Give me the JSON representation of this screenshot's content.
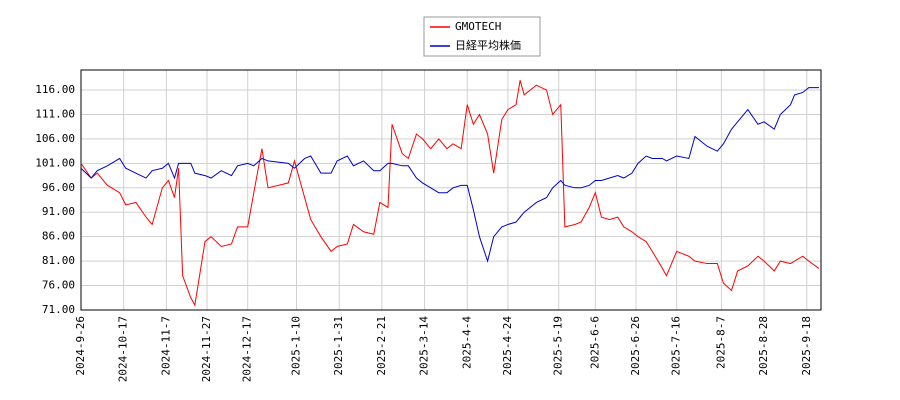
{
  "chart_data": {
    "type": "line",
    "x": [
      "2024-9-26",
      "2024-10-1",
      "2024-10-4",
      "2024-10-9",
      "2024-10-15",
      "2024-10-18",
      "2024-10-23",
      "2024-10-28",
      "2024-10-31",
      "2024-11-5",
      "2024-11-8",
      "2024-11-11",
      "2024-11-13",
      "2024-11-15",
      "2024-11-19",
      "2024-11-21",
      "2024-11-26",
      "2024-11-29",
      "2024-12-4",
      "2024-12-9",
      "2024-12-12",
      "2024-12-17",
      "2024-12-20",
      "2024-12-24",
      "2024-12-27",
      "2025-1-6",
      "2025-1-9",
      "2025-1-14",
      "2025-1-17",
      "2025-1-22",
      "2025-1-27",
      "2025-1-30",
      "2025-2-4",
      "2025-2-7",
      "2025-2-12",
      "2025-2-17",
      "2025-2-20",
      "2025-2-24",
      "2025-2-26",
      "2025-3-3",
      "2025-3-6",
      "2025-3-10",
      "2025-3-13",
      "2025-3-17",
      "2025-3-21",
      "2025-3-25",
      "2025-3-28",
      "2025-4-1",
      "2025-4-4",
      "2025-4-7",
      "2025-4-10",
      "2025-4-14",
      "2025-4-17",
      "2025-4-21",
      "2025-4-24",
      "2025-4-28",
      "2025-4-30",
      "2025-5-2",
      "2025-5-8",
      "2025-5-13",
      "2025-5-16",
      "2025-5-20",
      "2025-5-22",
      "2025-5-27",
      "2025-5-30",
      "2025-6-3",
      "2025-6-6",
      "2025-6-9",
      "2025-6-13",
      "2025-6-17",
      "2025-6-20",
      "2025-6-24",
      "2025-6-27",
      "2025-7-1",
      "2025-7-4",
      "2025-7-9",
      "2025-7-11",
      "2025-7-16",
      "2025-7-22",
      "2025-7-25",
      "2025-7-31",
      "2025-8-5",
      "2025-8-8",
      "2025-8-12",
      "2025-8-15",
      "2025-8-20",
      "2025-8-25",
      "2025-8-28",
      "2025-9-2",
      "2025-9-5",
      "2025-9-10",
      "2025-9-12",
      "2025-9-16",
      "2025-9-19",
      "2025-9-24"
    ],
    "series": [
      {
        "name": "GMOTECH",
        "color": "#ff0000",
        "values": [
          101,
          98,
          99,
          96.5,
          95,
          92.5,
          93,
          90,
          88.5,
          96,
          97.5,
          94,
          100,
          78,
          73.5,
          72,
          85,
          86,
          84,
          84.5,
          88,
          88,
          95,
          104,
          96,
          97,
          101.5,
          94,
          89.5,
          86,
          83,
          84,
          84.5,
          88.5,
          87,
          86.5,
          93,
          92,
          109,
          103,
          102,
          107,
          106,
          104,
          106,
          104,
          105,
          104,
          113,
          109,
          111,
          107,
          99,
          110,
          112,
          113,
          118,
          115,
          117,
          116,
          111,
          113,
          88,
          88.5,
          89,
          92,
          95,
          90,
          89.5,
          90,
          88,
          87,
          86,
          85,
          83,
          79.5,
          78,
          83,
          82,
          81,
          80.5,
          80.5,
          76.5,
          75,
          79,
          80,
          82,
          81,
          79,
          81,
          80.5,
          81,
          82,
          81,
          79.5
        ]
      },
      {
        "name": "日経平均株価",
        "color": "#0000cc",
        "values": [
          100,
          98,
          99.5,
          100.5,
          102,
          100,
          99,
          98,
          99.5,
          100,
          101,
          98,
          101,
          101,
          101,
          99,
          98.5,
          98,
          99.5,
          98.5,
          100.5,
          101,
          100.5,
          102,
          101.5,
          101,
          100,
          102,
          102.5,
          99,
          99,
          101.5,
          102.5,
          100.5,
          101.5,
          99.5,
          99.5,
          101,
          101,
          100.5,
          100.5,
          98,
          97,
          96,
          95,
          95,
          96,
          96.5,
          96.5,
          91.5,
          86,
          81,
          86,
          88,
          88.5,
          89,
          90,
          91,
          93,
          94,
          96,
          97.5,
          96.5,
          96,
          96,
          96.5,
          97.5,
          97.5,
          98,
          98.5,
          98,
          99,
          101,
          102.5,
          102,
          102,
          101.5,
          102.5,
          102,
          106.5,
          104.5,
          103.5,
          105,
          108,
          109.5,
          112,
          109,
          109.5,
          108,
          111,
          113,
          115,
          115.5,
          116.5,
          116.5
        ]
      }
    ],
    "xlim": [
      "2024-9-26",
      "2025-9-25"
    ],
    "xticks": [
      "2024-9-26",
      "2024-10-17",
      "2024-11-7",
      "2024-11-27",
      "2024-12-17",
      "2025-1-10",
      "2025-1-31",
      "2025-2-21",
      "2025-3-14",
      "2025-4-4",
      "2025-4-24",
      "2025-5-19",
      "2025-6-6",
      "2025-6-26",
      "2025-7-16",
      "2025-8-7",
      "2025-8-28",
      "2025-9-18"
    ],
    "ylim": [
      71,
      120.1
    ],
    "yticks": [
      {
        "value": 71,
        "label": "71.00"
      },
      {
        "value": 76,
        "label": "76.00"
      },
      {
        "value": 81,
        "label": "81.00"
      },
      {
        "value": 86,
        "label": "86.00"
      },
      {
        "value": 91,
        "label": "91.00"
      },
      {
        "value": 96,
        "label": "96.00"
      },
      {
        "value": 101,
        "label": "101.00"
      },
      {
        "value": 106,
        "label": "106.00"
      },
      {
        "value": 111,
        "label": "111.00"
      },
      {
        "value": 116,
        "label": "116.00"
      }
    ],
    "grid": true
  }
}
